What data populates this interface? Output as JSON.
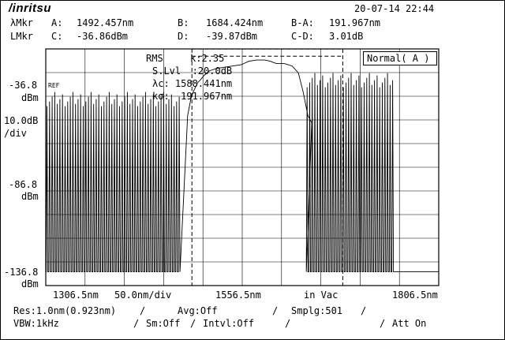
{
  "header": {
    "logo": "/inritsu",
    "datetime": "20-07-14 22:44"
  },
  "markers": {
    "lambda_label": "λMkr",
    "level_label": "LMkr",
    "a_label": "A:",
    "a_value": "1492.457nm",
    "b_label": "B:",
    "b_value": "1684.424nm",
    "ba_label": "B-A:",
    "ba_value": "191.967nm",
    "c_label": "C:",
    "c_value": "-36.86dBm",
    "d_label": "D:",
    "d_value": "-39.87dBm",
    "cd_label": "C-D:",
    "cd_value": "3.01dB"
  },
  "analysis": {
    "rms_label": "RMS",
    "k_value": "k:2.35",
    "slvl": "S.Lvl  :20.0dB",
    "lambda_c": "λc: 1588.441nm",
    "k_sigma": "kσ:  191.967nm"
  },
  "mode": "Normal( A )",
  "y_axis": {
    "top_value": "-36.8",
    "top_unit": "dBm",
    "ref_mark": "REF",
    "scale_value": "10.0dB",
    "scale_unit": "/div",
    "mid_value": "-86.8",
    "mid_unit": "dBm",
    "bottom_value": "-136.8",
    "bottom_unit": "dBm"
  },
  "x_axis": {
    "start": "1306.5nm",
    "span_per_div": "50.0nm/div",
    "center": "1556.5nm",
    "medium": "in Vac",
    "stop": "1806.5nm"
  },
  "status": {
    "res": "Res:1.0nm(0.923nm)",
    "avg": "Avg:Off",
    "smplg": "Smplg:501",
    "vbw": "VBW:1kHz",
    "sm": "Sm:Off",
    "intvl": "Intvl:Off",
    "att": "Att On",
    "sep": "/"
  },
  "chart_data": {
    "type": "line",
    "x_unit": "nm",
    "y_unit": "dBm",
    "xlim": [
      1306.5,
      1806.5
    ],
    "ylim": [
      -136.8,
      -36.8
    ],
    "grid": true,
    "marker_lines": {
      "A_wavelength_nm": 1492.457,
      "B_wavelength_nm": 1684.424,
      "C_level_dBm": -36.86,
      "D_level_dBm": -39.87
    },
    "series": [
      {
        "x": [
          1306.5,
          1313,
          1325,
          1340,
          1360,
          1380,
          1400,
          1420,
          1440,
          1460,
          1475,
          1482,
          1487,
          1491,
          1494,
          1497,
          1500,
          1503,
          1508,
          1515,
          1525,
          1535,
          1545,
          1555,
          1565,
          1575,
          1585,
          1592,
          1600,
          1610,
          1620,
          1628,
          1634,
          1637,
          1640,
          1645,
          1650,
          1660,
          1680,
          1700,
          1720,
          1730,
          1745,
          1760,
          1770,
          1780,
          1790,
          1806.5
        ],
        "y": [
          -131,
          -131,
          -131,
          -131,
          -131,
          -131,
          -131,
          -131,
          -131,
          -131,
          -131,
          -131,
          -65,
          -58,
          -55,
          -53,
          -51,
          -50,
          -48,
          -46,
          -45,
          -44.5,
          -44,
          -43.5,
          -42,
          -41.5,
          -41.5,
          -42,
          -43,
          -43,
          -44,
          -47,
          -55,
          -60,
          -65,
          -68,
          -131,
          -131,
          -131,
          -131,
          -131,
          -131,
          -131,
          -131,
          -131,
          -131,
          -131,
          -131
        ]
      }
    ],
    "spikes": {
      "comment_free_region": true,
      "peak_dBm_left": -58,
      "peak_dBm_right": -50,
      "floor_dBm": -131
    }
  }
}
